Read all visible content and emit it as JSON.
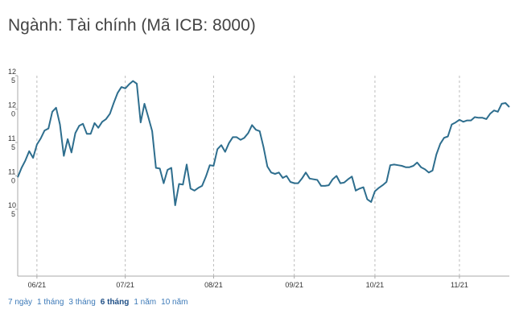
{
  "title": "Ngành: Tài chính (Mã ICB: 8000)",
  "range_buttons": [
    {
      "label": "7 ngày",
      "active": false
    },
    {
      "label": "1 tháng",
      "active": false
    },
    {
      "label": "3 tháng",
      "active": false
    },
    {
      "label": "6 tháng",
      "active": true
    },
    {
      "label": "1 năm",
      "active": false
    },
    {
      "label": "10 năm",
      "active": false
    }
  ],
  "colors": {
    "line": "#2e6e8e",
    "grid": "#bdbdbd",
    "axis": "#aaaaaa"
  },
  "chart_data": {
    "type": "line",
    "title": "",
    "xlabel": "",
    "ylabel": "",
    "ylim": [
      95,
      125
    ],
    "yticks": [
      {
        "value": 125,
        "label": [
          "12",
          "5"
        ]
      },
      {
        "value": 120,
        "label": [
          "12",
          "0"
        ]
      },
      {
        "value": 115,
        "label": [
          "11",
          "5"
        ]
      },
      {
        "value": 110,
        "label": [
          "11",
          "0"
        ]
      },
      {
        "value": 105,
        "label": [
          "10",
          "5"
        ]
      }
    ],
    "xticks": [
      {
        "index": 5,
        "label": "06/21"
      },
      {
        "index": 28,
        "label": "07/21"
      },
      {
        "index": 51,
        "label": "08/21"
      },
      {
        "index": 72,
        "label": "09/21"
      },
      {
        "index": 93,
        "label": "10/21"
      },
      {
        "index": 115,
        "label": "11/21"
      }
    ],
    "grid": true,
    "series": [
      {
        "values": [
          109.8,
          111.2,
          112.3,
          113.7,
          112.7,
          114.7,
          115.6,
          116.8,
          117.1,
          119.6,
          120.2,
          117.7,
          113.0,
          115.5,
          113.5,
          116.4,
          117.5,
          117.8,
          116.3,
          116.3,
          117.9,
          117.2,
          118.1,
          118.5,
          119.3,
          120.9,
          122.4,
          123.3,
          123.1,
          123.7,
          124.2,
          123.8,
          118.0,
          120.8,
          118.8,
          116.7,
          111.2,
          111.1,
          108.9,
          110.9,
          111.2,
          105.6,
          108.8,
          108.7,
          111.7,
          108.1,
          107.8,
          108.2,
          108.5,
          109.9,
          111.6,
          111.5,
          114.0,
          114.6,
          113.6,
          114.9,
          115.8,
          115.8,
          115.4,
          115.7,
          116.4,
          117.6,
          116.9,
          116.7,
          114.3,
          111.4,
          110.5,
          110.3,
          110.5,
          109.7,
          110.0,
          109.1,
          108.9,
          108.9,
          109.6,
          110.5,
          109.6,
          109.5,
          109.4,
          108.5,
          108.5,
          108.6,
          109.5,
          110.0,
          108.9,
          109.0,
          109.5,
          109.9,
          107.8,
          108.1,
          108.3,
          106.5,
          106.1,
          107.7,
          108.2,
          108.6,
          109.1,
          111.6,
          111.7,
          111.6,
          111.5,
          111.3,
          111.3,
          111.5,
          112.0,
          111.3,
          111.0,
          110.5,
          110.8,
          113.2,
          114.8,
          115.7,
          115.9,
          117.7,
          118.0,
          118.4,
          118.1,
          118.3,
          118.3,
          118.8,
          118.7,
          118.7,
          118.5,
          119.3,
          119.8,
          119.6,
          120.8,
          120.9,
          120.3
        ]
      }
    ]
  }
}
